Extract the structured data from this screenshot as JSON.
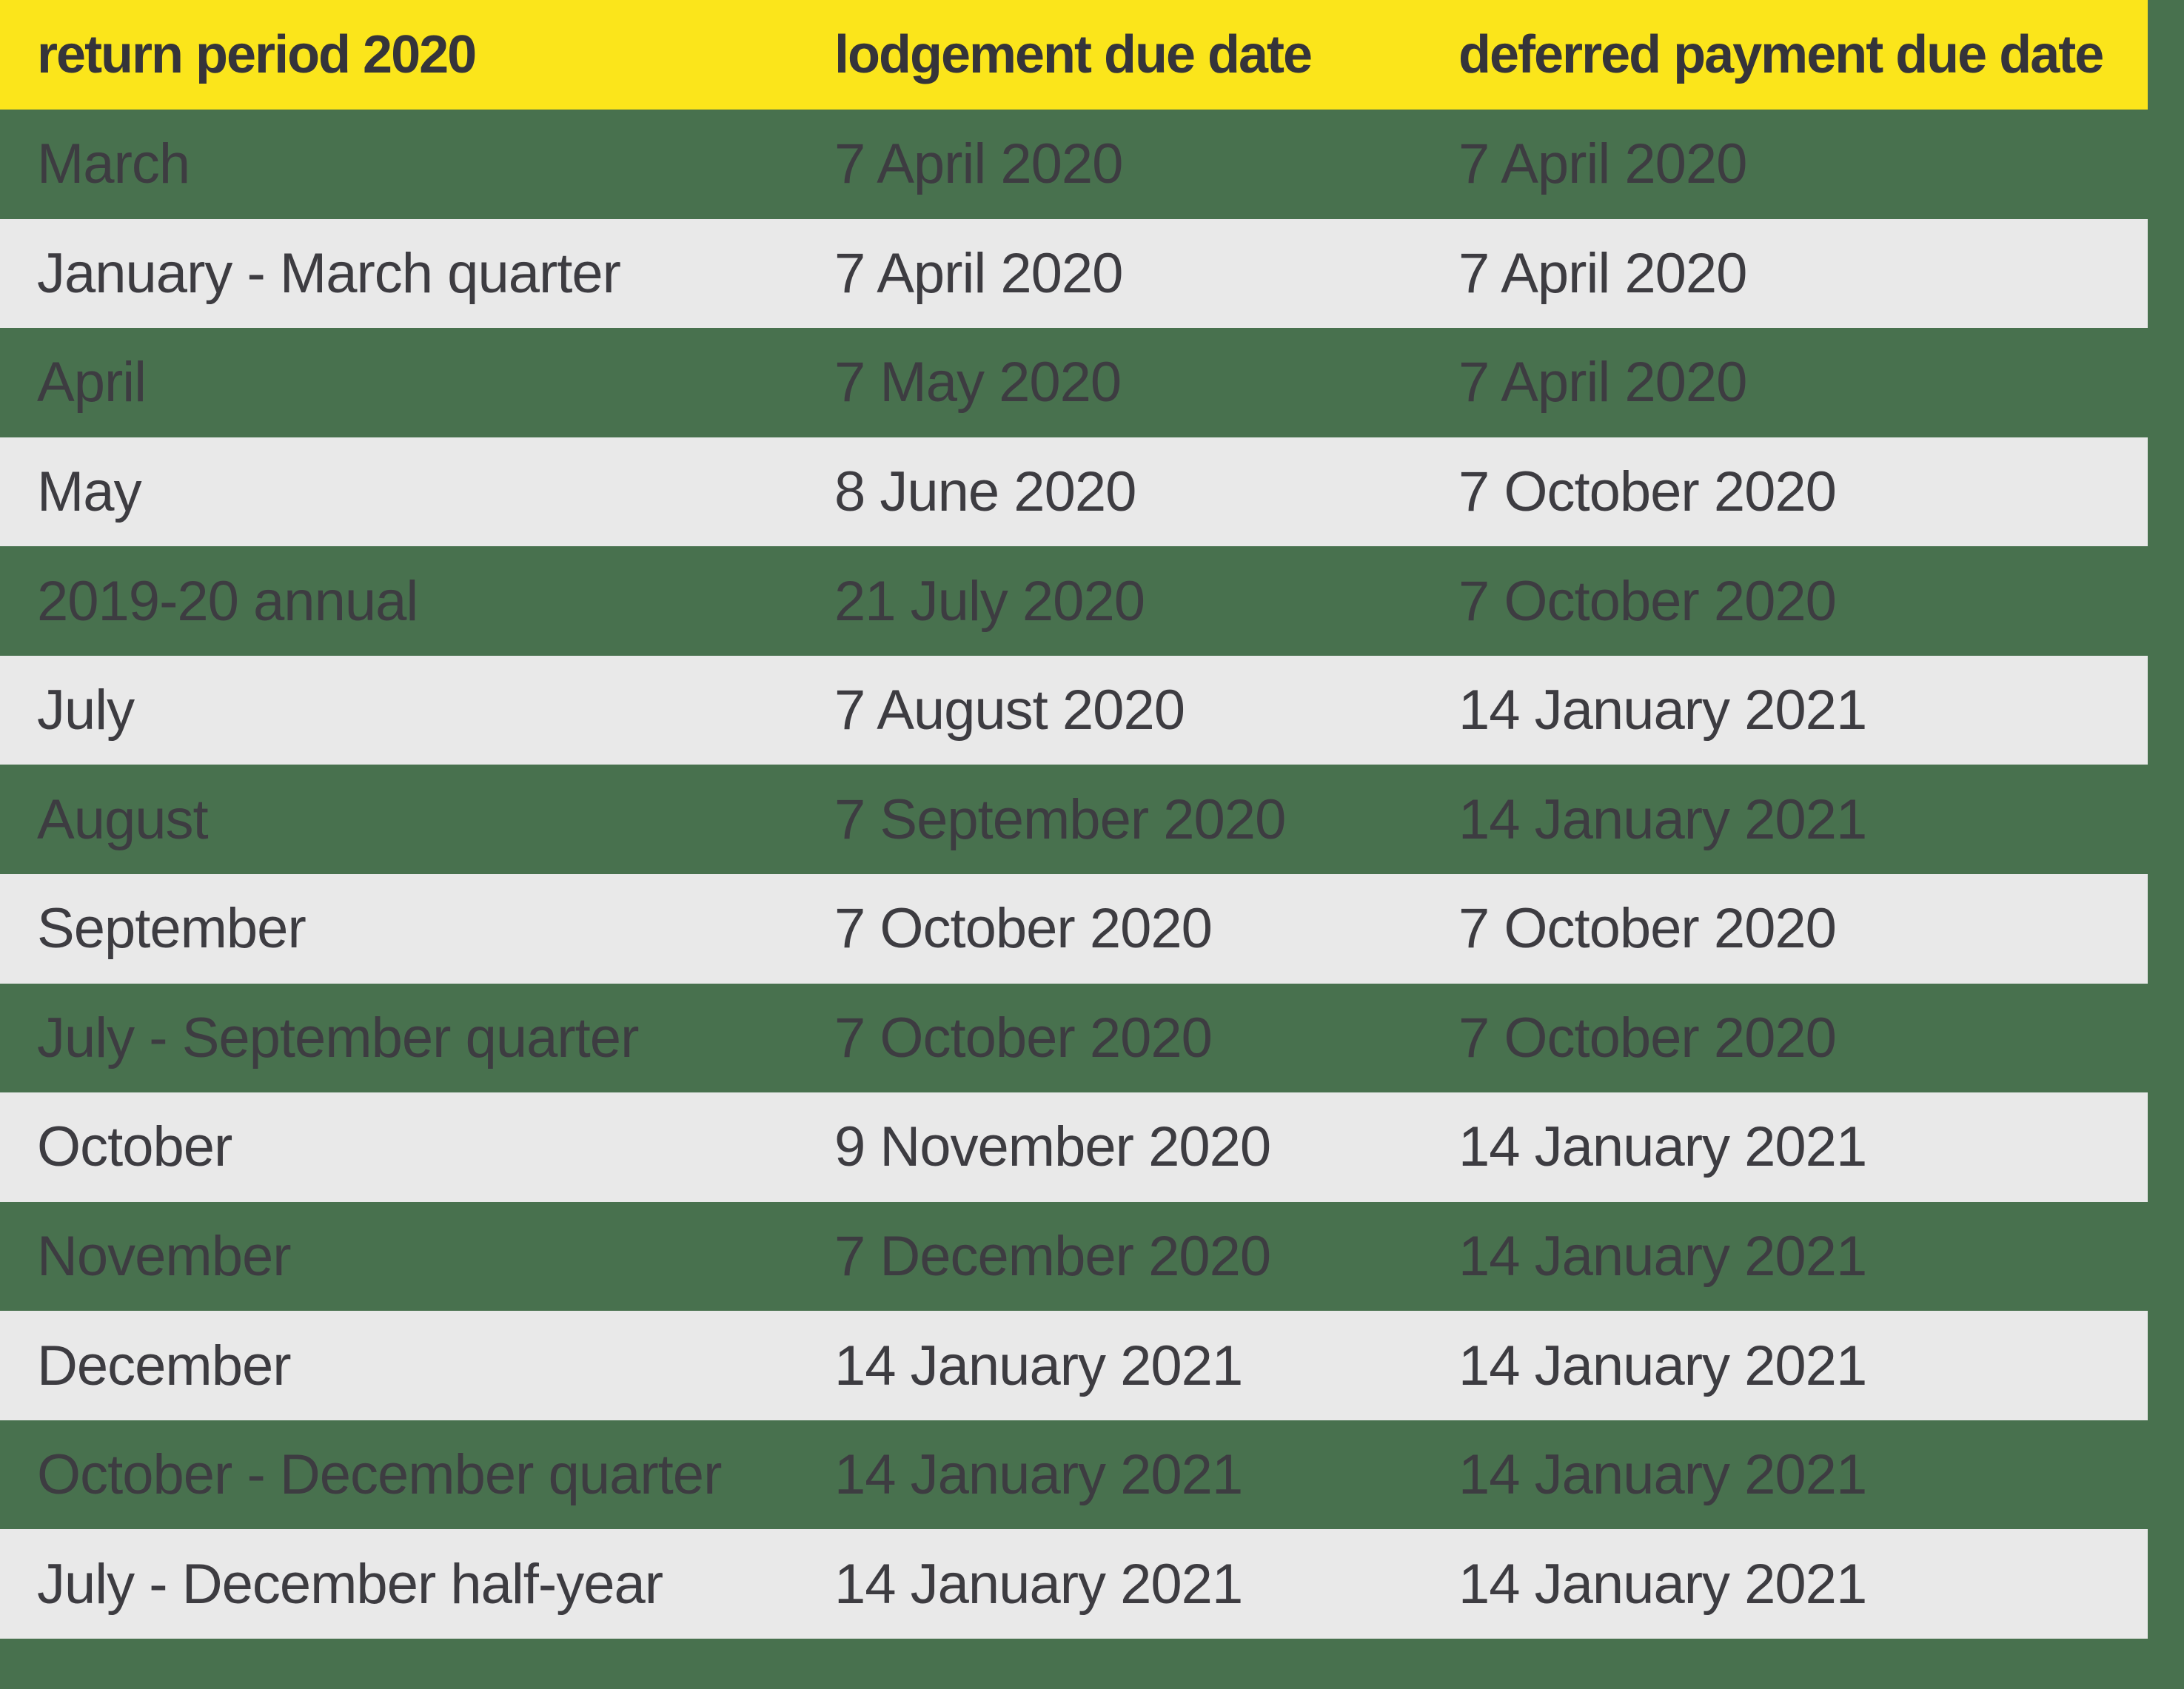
{
  "chart_data": {
    "type": "table",
    "columns": [
      "return period 2020",
      "lodgement due date",
      "deferred payment due date"
    ],
    "rows": [
      [
        "March",
        "7 April 2020",
        "7 April 2020"
      ],
      [
        "January - March quarter",
        "7 April 2020",
        "7 April 2020"
      ],
      [
        "April",
        "7 May 2020",
        "7 April 2020"
      ],
      [
        "May",
        "8 June 2020",
        "7 October 2020"
      ],
      [
        "2019-20 annual",
        "21 July 2020",
        "7 October 2020"
      ],
      [
        "July",
        "7 August 2020",
        "14 January 2021"
      ],
      [
        "August",
        "7 September 2020",
        "14 January 2021"
      ],
      [
        "September",
        "7 October 2020",
        "7 October 2020"
      ],
      [
        "July - September quarter",
        "7 October 2020",
        "7 October 2020"
      ],
      [
        "October",
        "9 November 2020",
        "14 January 2021"
      ],
      [
        "November",
        "7 December 2020",
        "14 January 2021"
      ],
      [
        "December",
        "14 January 2021",
        "14 January 2021"
      ],
      [
        "October - December quarter",
        "14 January 2021",
        "14 January 2021"
      ],
      [
        "July - December half-year",
        "14 January 2021",
        "14 January 2021"
      ]
    ],
    "layout": {
      "header_position": "top",
      "row_striping": "odd-rows-green, even-rows-gray",
      "grid": "off"
    }
  },
  "colors": {
    "background_green": "#48714E",
    "header_yellow": "#FBE51B",
    "row_gray": "#E9E9E9",
    "header_text": "#35343A",
    "body_text": "#3D3C41"
  }
}
